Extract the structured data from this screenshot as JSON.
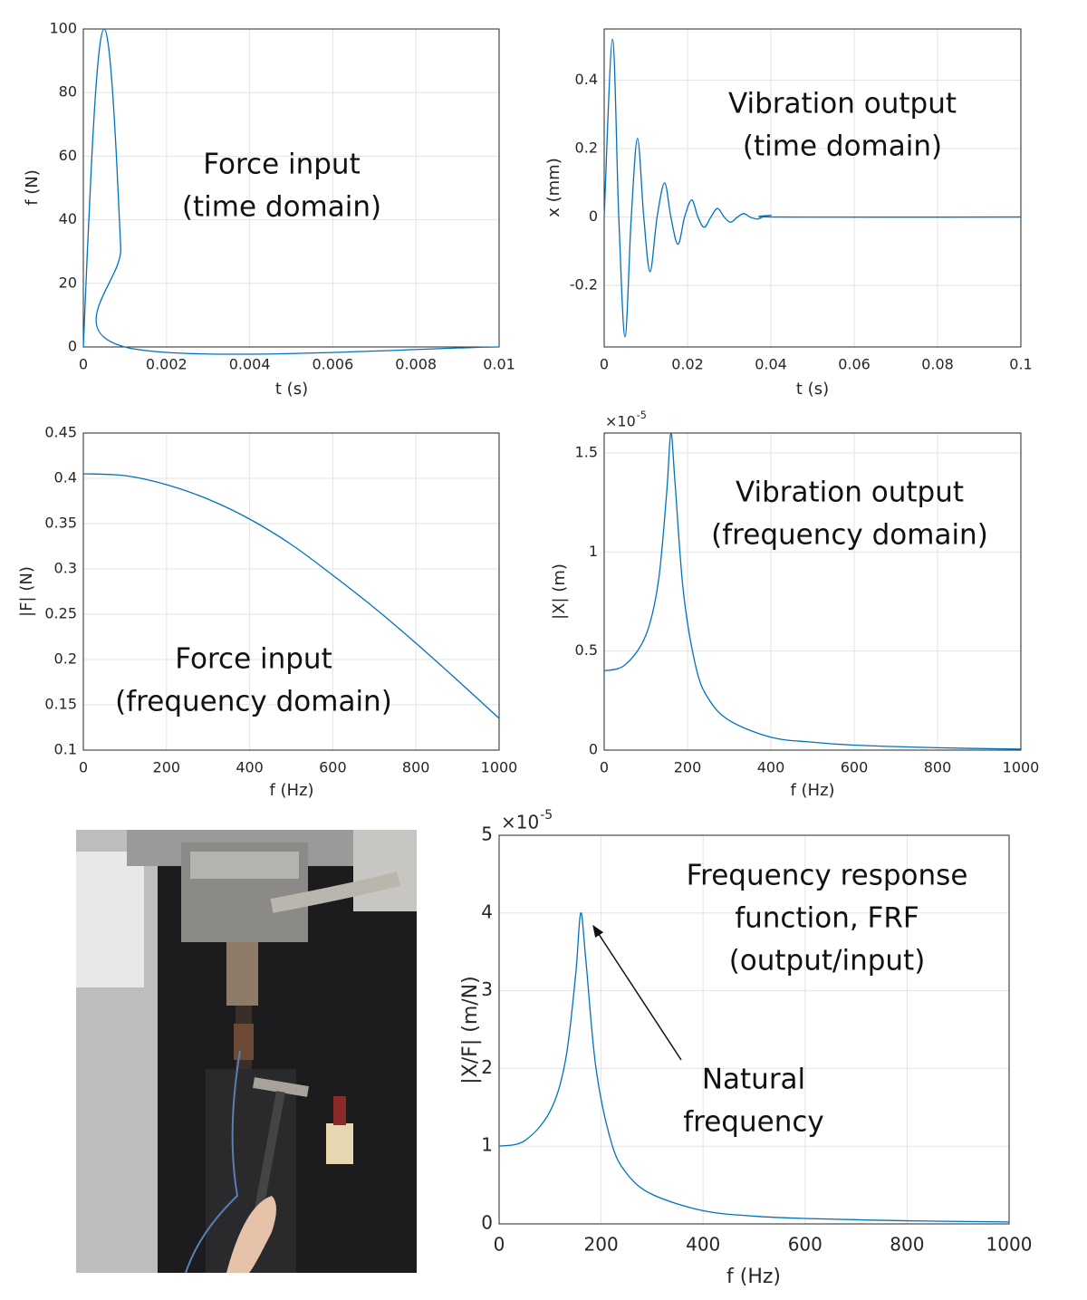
{
  "chart_data": [
    {
      "type": "line",
      "x_label": "t (s)",
      "y_label": "f (N)",
      "annotation": [
        "Force input",
        "(time domain)"
      ],
      "x": [
        0,
        0.0001,
        0.0002,
        0.0003,
        0.0004,
        0.0005,
        0.0006,
        0.0007,
        0.0008,
        0.0009,
        0.001,
        0.01
      ],
      "values": [
        0,
        30.9,
        58.8,
        80.9,
        95.1,
        100,
        95.1,
        80.9,
        58.8,
        30.9,
        0,
        0
      ],
      "color": "#0072bd",
      "xlim": [
        0,
        0.01
      ],
      "ylim": [
        0,
        100
      ],
      "xticks": [
        0,
        0.002,
        0.004,
        0.006,
        0.008,
        0.01
      ],
      "yticks": [
        0,
        20,
        40,
        60,
        80,
        100
      ],
      "grid": true
    },
    {
      "type": "line",
      "x_label": "t (s)",
      "y_label": "x (mm)",
      "annotation": [
        "Vibration output",
        "(time domain)"
      ],
      "x": [
        0,
        0.002,
        0.0035,
        0.005,
        0.0065,
        0.008,
        0.0095,
        0.011,
        0.0127,
        0.0145,
        0.016,
        0.0177,
        0.0193,
        0.021,
        0.0225,
        0.024,
        0.0256,
        0.0272,
        0.0288,
        0.0303,
        0.032,
        0.0335,
        0.035,
        0.0367,
        0.038,
        0.04,
        0.042,
        0.1
      ],
      "values": [
        0,
        0.52,
        0,
        -0.35,
        0,
        0.23,
        0,
        -0.16,
        0,
        0.1,
        0,
        -0.08,
        0,
        0.05,
        0,
        -0.03,
        0,
        0.025,
        0,
        -0.015,
        0,
        0.01,
        0,
        -0.006,
        0,
        0.005,
        0,
        0
      ],
      "color": "#0072bd",
      "xlim": [
        0,
        0.1
      ],
      "ylim": [
        -0.38,
        0.55
      ],
      "xticks": [
        0,
        0.02,
        0.04,
        0.06,
        0.08,
        0.1
      ],
      "yticks": [
        -0.2,
        0,
        0.2,
        0.4
      ],
      "grid": true
    },
    {
      "type": "line",
      "x_label": "f (Hz)",
      "y_label": "|F| (N)",
      "annotation": [
        "Force input",
        "(frequency domain)"
      ],
      "x": [
        0,
        100,
        200,
        300,
        400,
        500,
        600,
        700,
        800,
        900,
        1000
      ],
      "values": [
        0.405,
        0.403,
        0.393,
        0.377,
        0.355,
        0.327,
        0.293,
        0.257,
        0.218,
        0.177,
        0.135
      ],
      "color": "#0072bd",
      "xlim": [
        0,
        1000
      ],
      "ylim": [
        0.1,
        0.45
      ],
      "xticks": [
        0,
        200,
        400,
        600,
        800,
        1000
      ],
      "yticks": [
        0.1,
        0.15,
        0.2,
        0.25,
        0.3,
        0.35,
        0.4,
        0.45
      ],
      "grid": true
    },
    {
      "type": "line",
      "x_label": "f (Hz)",
      "y_label": "|X| (m)",
      "annotation": [
        "Vibration output",
        "(frequency domain)"
      ],
      "y_multiplier": "×10",
      "y_multiplier_exponent": "-5",
      "x": [
        0,
        50,
        100,
        130,
        150,
        160,
        170,
        190,
        220,
        250,
        300,
        400,
        500,
        600,
        800,
        1000
      ],
      "values": [
        0.4,
        0.43,
        0.58,
        0.85,
        1.3,
        1.6,
        1.35,
        0.8,
        0.42,
        0.26,
        0.15,
        0.065,
        0.04,
        0.025,
        0.012,
        0.005
      ],
      "color": "#0072bd",
      "xlim": [
        0,
        1000
      ],
      "ylim": [
        0,
        1.6
      ],
      "xticks": [
        0,
        200,
        400,
        600,
        800,
        1000
      ],
      "yticks": [
        0,
        0.5,
        1,
        1.5
      ],
      "grid": true
    },
    {
      "type": "line",
      "x_label": "f (Hz)",
      "y_label": "|X/F| (m/N)",
      "annotation": [
        "Frequency response",
        "function, FRF",
        "(output/input)"
      ],
      "arrow_label": [
        "Natural",
        "frequency"
      ],
      "y_multiplier": "×10",
      "y_multiplier_exponent": "-5",
      "x": [
        0,
        50,
        100,
        130,
        150,
        160,
        170,
        190,
        220,
        250,
        300,
        400,
        500,
        600,
        800,
        1000
      ],
      "values": [
        1,
        1.07,
        1.45,
        2.1,
        3.2,
        4.0,
        3.4,
        2.0,
        1.05,
        0.65,
        0.38,
        0.17,
        0.1,
        0.07,
        0.04,
        0.025
      ],
      "color": "#0072bd",
      "xlim": [
        0,
        1000
      ],
      "ylim": [
        0,
        5
      ],
      "xticks": [
        0,
        200,
        400,
        600,
        800,
        1000
      ],
      "yticks": [
        0,
        1,
        2,
        3,
        4,
        5
      ],
      "grid": true
    }
  ]
}
